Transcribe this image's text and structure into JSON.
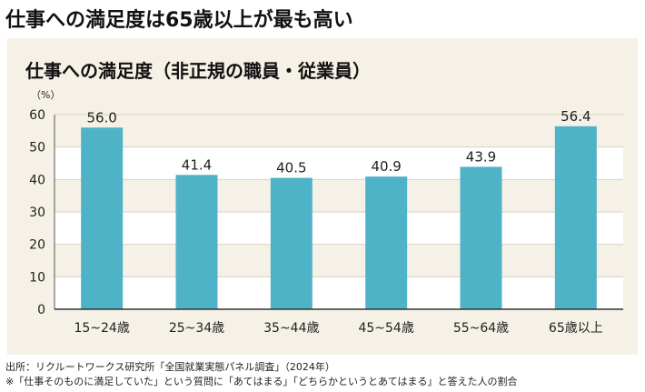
{
  "headline": "仕事への満足度は65歳以上が最も高い",
  "chart_data": {
    "type": "bar",
    "title": "仕事への満足度（非正規の職員・従業員）",
    "ylabel": "（%）",
    "xlabel": "",
    "categories": [
      "15~24歳",
      "25~34歳",
      "35~44歳",
      "45~54歳",
      "55~64歳",
      "65歳以上"
    ],
    "values": [
      56.0,
      41.4,
      40.5,
      40.9,
      43.9,
      56.4
    ],
    "value_labels": [
      "56.0",
      "41.4",
      "40.5",
      "40.9",
      "43.9",
      "56.4"
    ],
    "ylim": [
      0,
      60
    ],
    "yticks": [
      "0",
      "10",
      "20",
      "30",
      "40",
      "50",
      "60"
    ],
    "grid": true,
    "bar_color": "#4fb3c8",
    "band_color": "#f5f1e6"
  },
  "footnotes": {
    "source": "出所：リクルートワークス研究所「全国就業実態パネル調査」（2024年）",
    "note": "※「仕事そのものに満足していた」という質問に「あてはまる」「どちらかというとあてはまる」と答えた人の割合"
  }
}
